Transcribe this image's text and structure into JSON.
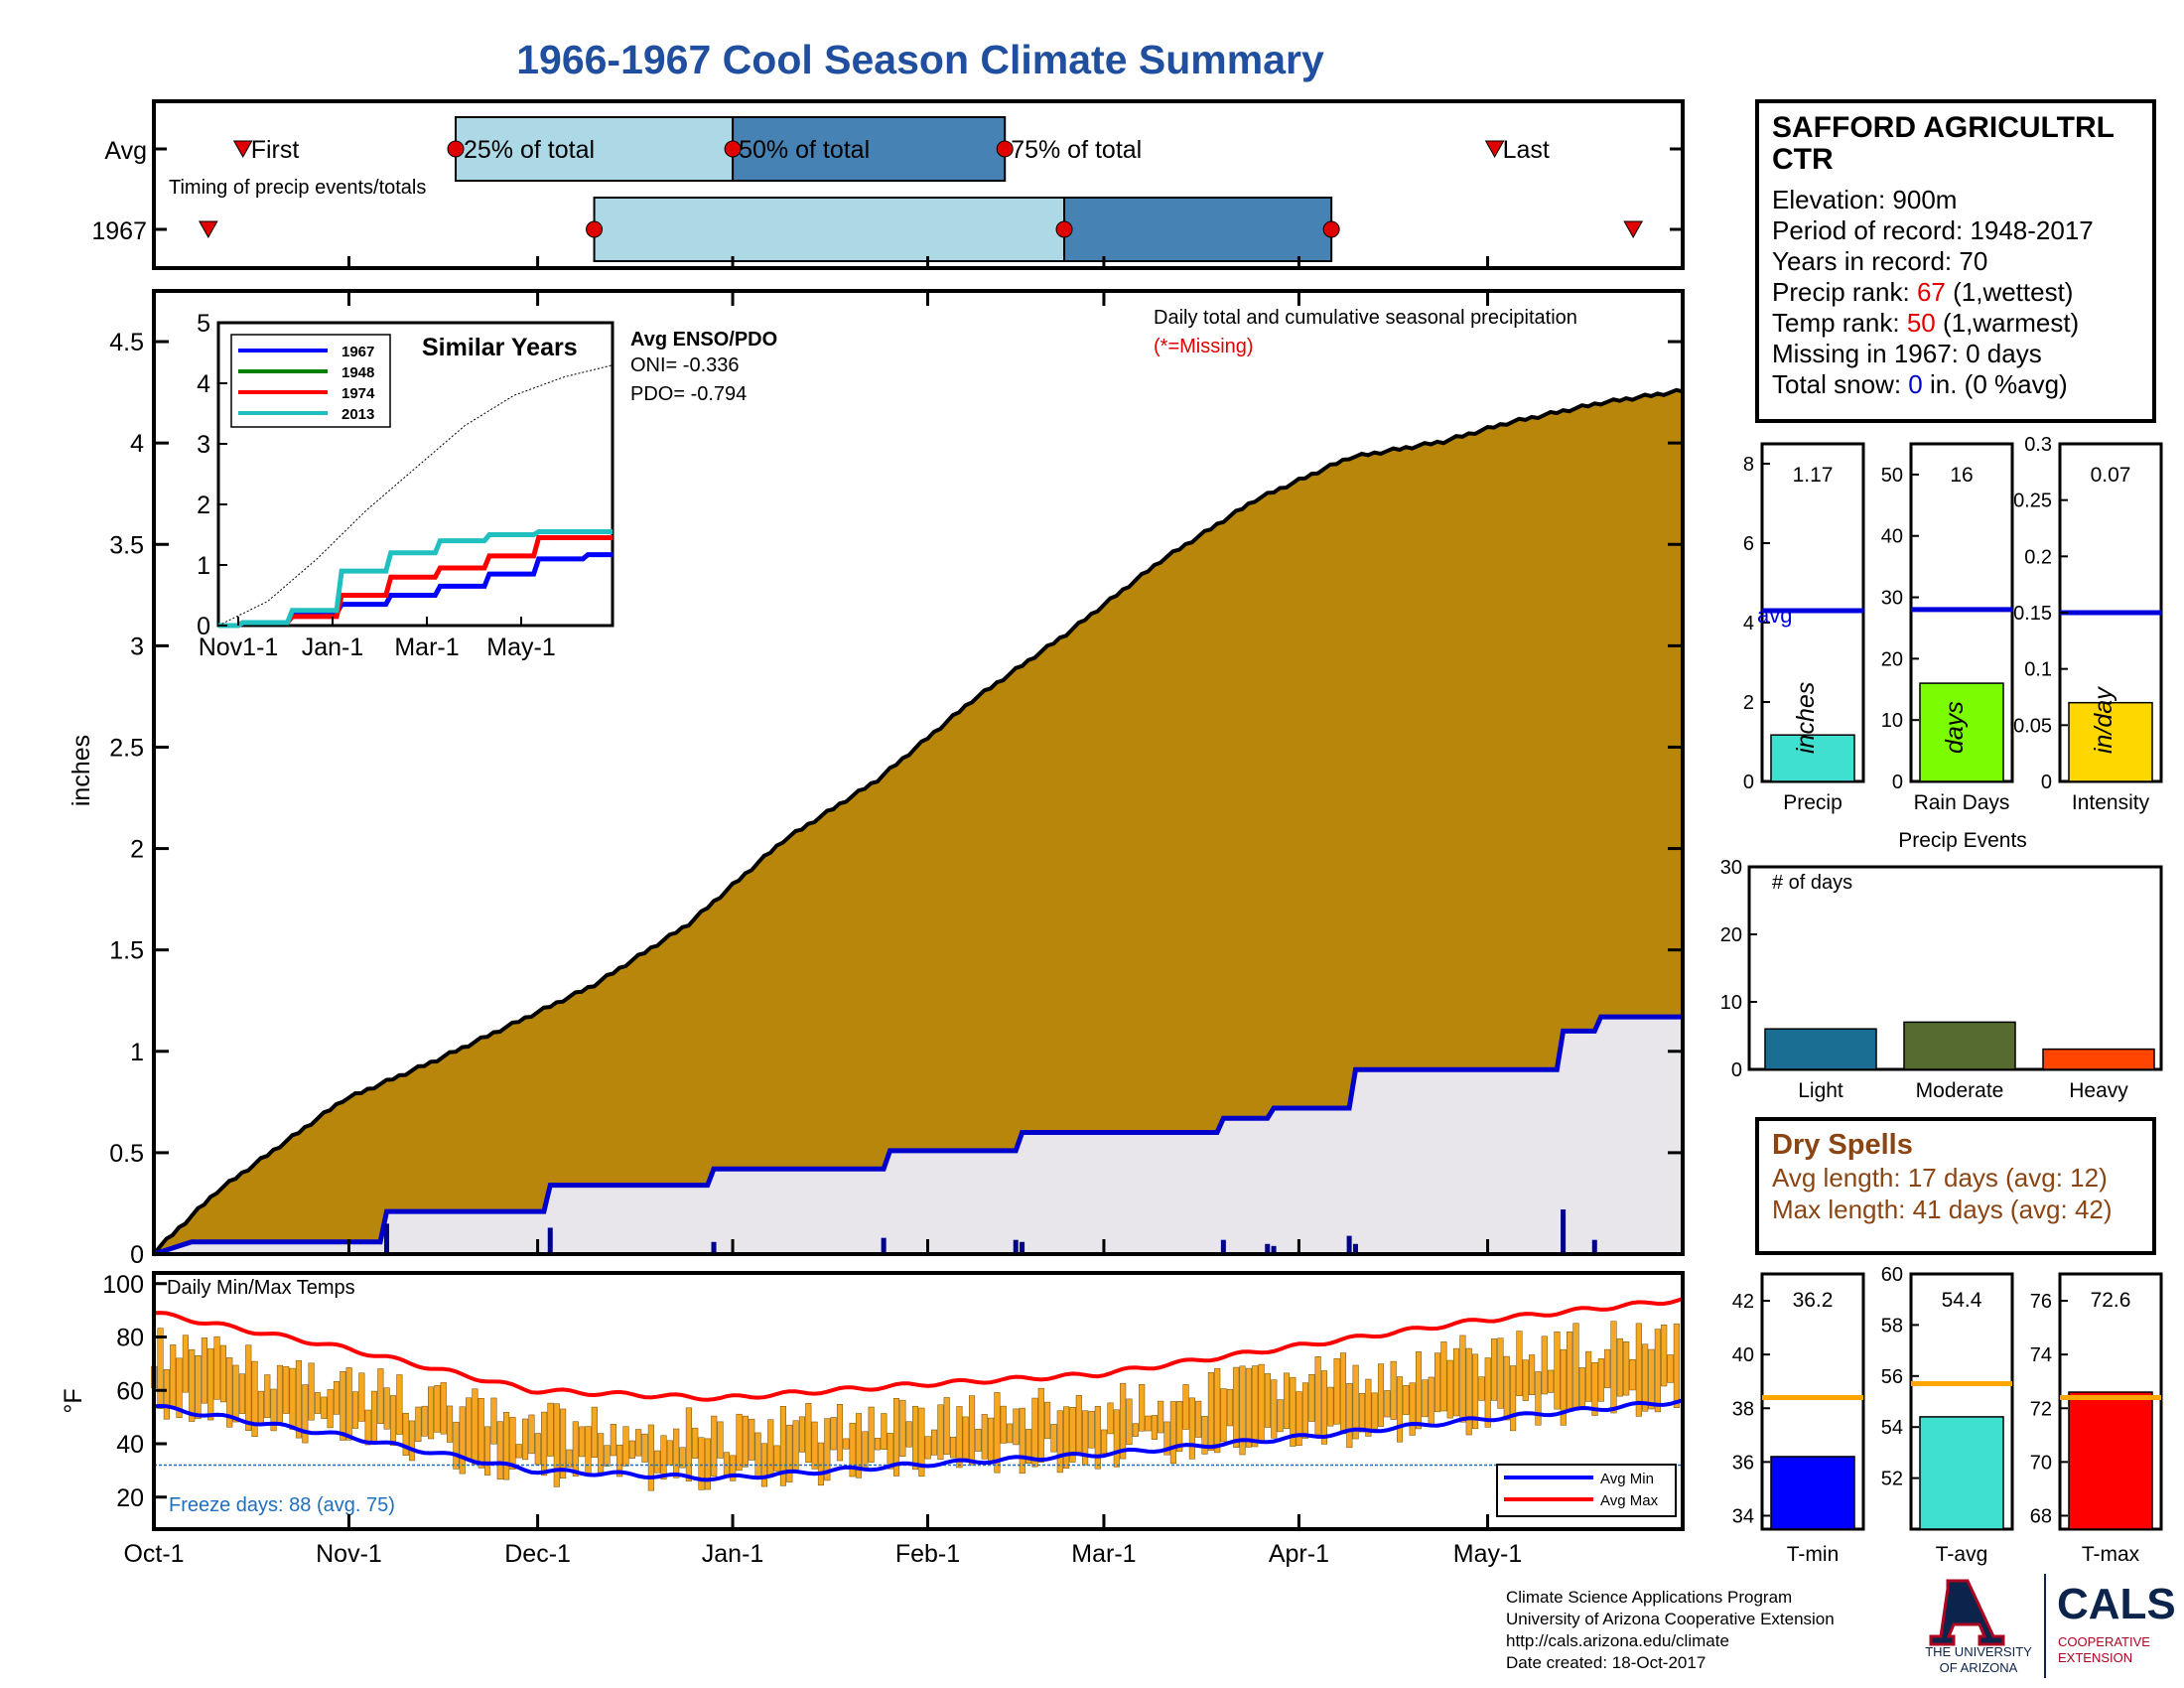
{
  "title": "1966-1967 Cool Season Climate Summary",
  "timing": {
    "row_labels": [
      "Avg",
      "1967"
    ],
    "caption": "Timing of precip events/totals",
    "first_label": "First",
    "last_label": "Last",
    "q25_label": "25% of total",
    "q50_label": "50% of total",
    "q75_label": "75% of total",
    "colors": {
      "light": "#add8e6",
      "dark": "#4682b4",
      "marker": "#e00000"
    }
  },
  "station": {
    "name_line1": "SAFFORD AGRICULTRL",
    "name_line2": "CTR",
    "elevation": "Elevation: 900m",
    "period": "Period of record: 1948-2017",
    "years": "Years in record: 70",
    "precip_rank_prefix": "Precip rank: ",
    "precip_rank_value": "67",
    "precip_rank_suffix": " (1,wettest)",
    "temp_rank_prefix": "Temp rank: ",
    "temp_rank_value": "50",
    "temp_rank_suffix": " (1,warmest)",
    "missing": "Missing in 1967: 0 days",
    "snow_prefix": "Total snow: ",
    "snow_value": "0",
    "snow_suffix": " in. (0 %avg)"
  },
  "main_chart": {
    "ylabel": "inches",
    "note": "Daily total and cumulative seasonal precipitation",
    "missing_note": "(*=Missing)",
    "avg_color": "#b8860b",
    "year_color": "#0000cc"
  },
  "inset": {
    "title": "Similar Years",
    "enso_title": "Avg ENSO/PDO",
    "oni": "ONI= -0.336",
    "pdo": "PDO= -0.794",
    "x_ticks": [
      "Nov1-1",
      "Jan-1",
      "Mar-1",
      "May-1"
    ],
    "y_ticks": [
      "0",
      "1",
      "2",
      "3",
      "4",
      "5"
    ],
    "legend": [
      {
        "name": "1967",
        "color": "#0000ff"
      },
      {
        "name": "1948",
        "color": "#008000"
      },
      {
        "name": "1974",
        "color": "#ff0000"
      },
      {
        "name": "2013",
        "color": "#20c0c0"
      }
    ]
  },
  "bars_precip": {
    "label": "Precip",
    "unit": "inches",
    "value_text": "1.17",
    "avg_label": "avg",
    "color": "#40e0d0",
    "y_ticks": [
      "0",
      "2",
      "4",
      "6",
      "8"
    ]
  },
  "bars_days": {
    "label": "Rain Days",
    "unit": "days",
    "value_text": "16",
    "color": "#7cfc00",
    "y_ticks": [
      "0",
      "10",
      "20",
      "30",
      "40",
      "50"
    ]
  },
  "bars_intensity": {
    "label": "Intensity",
    "unit": "in/day",
    "value_text": "0.07",
    "color": "#ffd700",
    "y_ticks": [
      "0",
      "0.05",
      "0.1",
      "0.15",
      "0.2",
      "0.25",
      "0.3"
    ]
  },
  "events": {
    "title": "Precip Events",
    "ylabel_inside": "# of days",
    "y_ticks": [
      "0",
      "10",
      "20",
      "30"
    ],
    "categories": [
      "Light",
      "Moderate",
      "Heavy"
    ]
  },
  "dry_spells": {
    "title": "Dry Spells",
    "avg_length": "Avg length: 17 days (avg: 12)",
    "max_length": "Max length: 41 days (avg: 42)"
  },
  "temps": {
    "caption": "Daily Min/Max Temps",
    "ylabel": "°F",
    "freeze": "Freeze days: 88 (avg. 75)",
    "legend_min": "Avg Min",
    "legend_max": "Avg Max",
    "y_ticks": [
      "20",
      "40",
      "60",
      "80",
      "100"
    ],
    "month_ticks": [
      "Oct-1",
      "Nov-1",
      "Dec-1",
      "Jan-1",
      "Feb-1",
      "Mar-1",
      "Apr-1",
      "May-1"
    ]
  },
  "temp_bars": [
    {
      "label": "T-min",
      "value_text": "36.2",
      "color": "#0000ff",
      "y_ticks": [
        "34",
        "36",
        "38",
        "40",
        "42"
      ]
    },
    {
      "label": "T-avg",
      "value_text": "54.4",
      "color": "#40e0d0",
      "y_ticks": [
        "52",
        "54",
        "56",
        "58",
        "60"
      ]
    },
    {
      "label": "T-max",
      "value_text": "72.6",
      "color": "#ff0000",
      "y_ticks": [
        "68",
        "70",
        "72",
        "74",
        "76"
      ]
    }
  ],
  "footer": {
    "line1": "Climate Science Applications Program",
    "line2": "University of Arizona Cooperative Extension",
    "line3": "http://cals.arizona.edu/climate",
    "line4": " Date created: 18-Oct-2017",
    "ua_line1": "THE UNIVERSITY",
    "ua_line2": "OF ARIZONA",
    "cals": "CALS",
    "coop1": "COOPERATIVE",
    "coop2": "EXTENSION"
  },
  "chart_data": [
    {
      "type": "area",
      "title": "Daily total and cumulative seasonal precipitation",
      "ylabel": "inches",
      "ylim": [
        0,
        4.75
      ],
      "x_ticks": [
        "Oct-1",
        "Nov-1",
        "Dec-1",
        "Jan-1",
        "Feb-1",
        "Mar-1",
        "Apr-1",
        "May-1"
      ],
      "y_ticks": [
        0,
        0.5,
        1,
        1.5,
        2,
        2.5,
        3,
        3.5,
        4,
        4.5
      ],
      "season_days": 243,
      "series": [
        {
          "name": "Avg",
          "x_day": [
            0,
            10,
            30,
            45,
            60,
            70,
            85,
            100,
            115,
            130,
            145,
            160,
            175,
            190,
            205,
            215,
            230,
            243
          ],
          "values": [
            0.0,
            0.3,
            0.75,
            0.95,
            1.17,
            1.32,
            1.62,
            2.03,
            2.33,
            2.72,
            3.05,
            3.41,
            3.71,
            3.92,
            4.0,
            4.09,
            4.19,
            4.25
          ]
        },
        {
          "name": "1967",
          "x_day": [
            0,
            6,
            36,
            37,
            62,
            63,
            88,
            89,
            116,
            117,
            137,
            138,
            169,
            170,
            177,
            178,
            190,
            191,
            223,
            224,
            229,
            230,
            243
          ],
          "values": [
            0.0,
            0.06,
            0.06,
            0.21,
            0.21,
            0.34,
            0.34,
            0.42,
            0.42,
            0.51,
            0.51,
            0.6,
            0.6,
            0.67,
            0.67,
            0.72,
            0.72,
            0.91,
            0.91,
            1.1,
            1.1,
            1.17,
            1.17
          ]
        }
      ],
      "daily_precip_1967": {
        "x_day": [
          37,
          63,
          89,
          116,
          137,
          138,
          150,
          170,
          177,
          178,
          190,
          191,
          224,
          229
        ],
        "values": [
          0.15,
          0.13,
          0.06,
          0.08,
          0.07,
          0.06,
          0.01,
          0.07,
          0.05,
          0.04,
          0.09,
          0.05,
          0.22,
          0.07
        ]
      }
    },
    {
      "type": "bar",
      "categories": [
        "Precip",
        "Rain Days",
        "Intensity"
      ],
      "values": [
        1.17,
        16,
        0.07
      ],
      "averages": [
        4.3,
        28,
        0.15
      ],
      "units": [
        "inches",
        "days",
        "in/day"
      ]
    },
    {
      "type": "bar",
      "title": "Precip Events",
      "categories": [
        "Light",
        "Moderate",
        "Heavy"
      ],
      "values": [
        6,
        7,
        3
      ],
      "colors": [
        "#1a6e94",
        "#556b2f",
        "#ff4500"
      ],
      "ylim": [
        0,
        30
      ]
    },
    {
      "type": "bar",
      "categories": [
        "T-min",
        "T-avg",
        "T-max"
      ],
      "values": [
        36.2,
        54.4,
        72.6
      ],
      "averages": [
        38.4,
        55.7,
        72.4
      ],
      "ylims": [
        [
          33.5,
          43
        ],
        [
          50,
          60
        ],
        [
          67.5,
          77
        ]
      ]
    },
    {
      "type": "line",
      "title": "Daily Min/Max Temps",
      "ylabel": "°F",
      "ylim": [
        8,
        104
      ],
      "series": [
        {
          "name": "Avg Min",
          "x_day": [
            0,
            30,
            60,
            90,
            120,
            150,
            180,
            210,
            243
          ],
          "values": [
            54,
            43,
            30,
            27,
            32,
            36,
            42,
            49,
            56
          ]
        },
        {
          "name": "Avg Max",
          "x_day": [
            0,
            30,
            60,
            90,
            120,
            150,
            180,
            210,
            243
          ],
          "values": [
            89,
            76,
            60,
            57,
            62,
            66,
            76,
            86,
            94
          ]
        }
      ],
      "freeze_line": 32
    },
    {
      "type": "line",
      "title": "Similar Years",
      "x_ticks": [
        "Nov1-1",
        "Jan-1",
        "Mar-1",
        "May-1"
      ],
      "ylim": [
        0,
        5
      ],
      "series": [
        {
          "name": "1967",
          "values": [
            0,
            0.05,
            0.2,
            0.35,
            0.5,
            0.65,
            0.85,
            1.1,
            1.17
          ]
        },
        {
          "name": "1974",
          "values": [
            0,
            0.05,
            0.15,
            0.5,
            0.8,
            0.95,
            1.15,
            1.45,
            1.45
          ]
        },
        {
          "name": "2013",
          "values": [
            0,
            0.05,
            0.25,
            0.9,
            1.2,
            1.4,
            1.5,
            1.55,
            1.55
          ]
        },
        {
          "name": "avg",
          "values": [
            0,
            0.4,
            1.1,
            1.9,
            2.6,
            3.3,
            3.8,
            4.1,
            4.3
          ]
        }
      ]
    },
    {
      "type": "bar",
      "title": "Timing of precip events/totals",
      "categories": [
        "Avg",
        "1967"
      ],
      "series": [
        {
          "name": "First",
          "x_day": [
            12,
            5
          ]
        },
        {
          "name": "25% of total",
          "x_day": [
            55,
            83
          ]
        },
        {
          "name": "50% of total",
          "x_day": [
            111,
            178
          ]
        },
        {
          "name": "75% of total",
          "x_day": [
            166,
            232
          ]
        },
        {
          "name": "Last",
          "x_day": [
            265,
            293
          ]
        }
      ],
      "xlim_days": [
        -6,
        303
      ]
    }
  ]
}
